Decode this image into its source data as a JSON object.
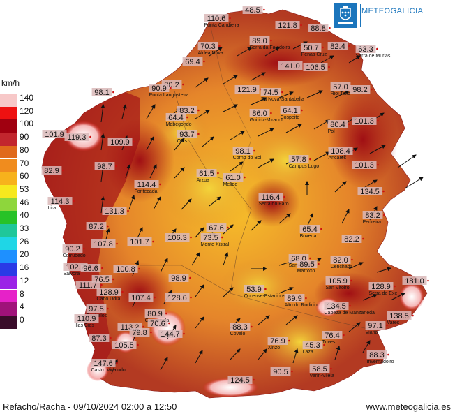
{
  "legend": {
    "unit": "km/h",
    "items": [
      {
        "label": "140",
        "color": "#f7c8c8"
      },
      {
        "label": "120",
        "color": "#ee1111"
      },
      {
        "label": "100",
        "color": "#a00010"
      },
      {
        "label": "90",
        "color": "#c2262e"
      },
      {
        "label": "80",
        "color": "#e06a1c"
      },
      {
        "label": "70",
        "color": "#f08c1e"
      },
      {
        "label": "60",
        "color": "#f7b21c"
      },
      {
        "label": "53",
        "color": "#f7e81e"
      },
      {
        "label": "46",
        "color": "#8ed63c"
      },
      {
        "label": "40",
        "color": "#27c227"
      },
      {
        "label": "33",
        "color": "#1fc79a"
      },
      {
        "label": "26",
        "color": "#1fd6e6"
      },
      {
        "label": "20",
        "color": "#1e90ff"
      },
      {
        "label": "16",
        "color": "#2a3ae6"
      },
      {
        "label": "12",
        "color": "#9b22e6"
      },
      {
        "label": "8",
        "color": "#e622c8"
      },
      {
        "label": "4",
        "color": "#a0127a"
      },
      {
        "label": "0",
        "color": "#3a0c2a"
      }
    ]
  },
  "logo": {
    "text": "METEOGALICIA",
    "icon": "galicia-crest-icon"
  },
  "footer": {
    "left": "Refacho/Racha - 09/10/2024 02:00 a 12:50",
    "right": "www.meteogalicia.es"
  },
  "stations": [
    {
      "value": "48.5",
      "place": ""
    },
    {
      "value": "110.6",
      "place": "Punta Candieira"
    },
    {
      "value": "121.8",
      "place": ""
    },
    {
      "value": "89.0",
      "place": "Serra da Faladoira"
    },
    {
      "value": "88.8",
      "place": ""
    },
    {
      "value": "70.3",
      "place": "Aldea Nova"
    },
    {
      "value": "50.7",
      "place": "Penas Cruz"
    },
    {
      "value": "82.4",
      "place": ""
    },
    {
      "value": "63.3",
      "place": "Serra de Murias"
    },
    {
      "value": "69.4",
      "place": ""
    },
    {
      "value": "141.0",
      "place": ""
    },
    {
      "value": "106.5",
      "place": ""
    },
    {
      "value": "80.2",
      "place": ""
    },
    {
      "value": "90.9",
      "place": "Punta Langosteira"
    },
    {
      "value": "121.9",
      "place": ""
    },
    {
      "value": "74.5",
      "place": "Sa Nova-Santaballa"
    },
    {
      "value": "57.0",
      "place": "Rioi Tallo"
    },
    {
      "value": "98.2",
      "place": ""
    },
    {
      "value": "98.1",
      "place": ""
    },
    {
      "value": "83.2",
      "place": ""
    },
    {
      "value": "64.4",
      "place": "Mabegondo"
    },
    {
      "value": "86.0",
      "place": "Guitiriz-Mirador"
    },
    {
      "value": "64.1",
      "place": "Cospeito"
    },
    {
      "value": "80.4",
      "place": "Pol"
    },
    {
      "value": "101.3",
      "place": ""
    },
    {
      "value": "101.9",
      "place": ""
    },
    {
      "value": "119.3",
      "place": ""
    },
    {
      "value": "109.9",
      "place": ""
    },
    {
      "value": "93.7",
      "place": "Olas"
    },
    {
      "value": "98.1",
      "place": "Corno do Boi"
    },
    {
      "value": "57.8",
      "place": "Campus Lugo"
    },
    {
      "value": "108.4",
      "place": "Ancares"
    },
    {
      "value": "82.9",
      "place": ""
    },
    {
      "value": "98.7",
      "place": ""
    },
    {
      "value": "61.5",
      "place": "Arzua"
    },
    {
      "value": "61.0",
      "place": "Melide"
    },
    {
      "value": "101.3",
      "place": ""
    },
    {
      "value": "114.4",
      "place": "Fontecada"
    },
    {
      "value": "134.5",
      "place": ""
    },
    {
      "value": "114.3",
      "place": "Lira"
    },
    {
      "value": "116.4",
      "place": "Serra do Faro"
    },
    {
      "value": "131.3",
      "place": ""
    },
    {
      "value": "83.2",
      "place": "Pedreira"
    },
    {
      "value": "87.2",
      "place": ""
    },
    {
      "value": "67.6",
      "place": "Lalin"
    },
    {
      "value": "73.5",
      "place": "Monte Xistral"
    },
    {
      "value": "65.4",
      "place": "Boveda"
    },
    {
      "value": "101.7",
      "place": ""
    },
    {
      "value": "106.3",
      "place": ""
    },
    {
      "value": "82.2",
      "place": ""
    },
    {
      "value": "90.2",
      "place": "Corrubedo"
    },
    {
      "value": "107.8",
      "place": ""
    },
    {
      "value": "68.0",
      "place": "Sanxenxo"
    },
    {
      "value": "89.5",
      "place": "Marroxo"
    },
    {
      "value": "82.0",
      "place": "Cenchada"
    },
    {
      "value": "102.7",
      "place": "Salvora"
    },
    {
      "value": "96.6",
      "place": ""
    },
    {
      "value": "100.8",
      "place": ""
    },
    {
      "value": "111.7",
      "place": ""
    },
    {
      "value": "76.5",
      "place": ""
    },
    {
      "value": "98.9",
      "place": ""
    },
    {
      "value": "105.9",
      "place": "San Vitoiro"
    },
    {
      "value": "128.9",
      "place": "Serra de Exe"
    },
    {
      "value": "181.0",
      "place": ""
    },
    {
      "value": "128.9",
      "place": "Cabo Udra"
    },
    {
      "value": "107.4",
      "place": ""
    },
    {
      "value": "128.6",
      "place": ""
    },
    {
      "value": "53.9",
      "place": "Ourense-Estacions"
    },
    {
      "value": "89.9",
      "place": "Alto do Rodicio"
    },
    {
      "value": "97.5",
      "place": "Castrelos"
    },
    {
      "value": "80.9",
      "place": "Gargamala"
    },
    {
      "value": "134.5",
      "place": "Cabeza de Manzaneda"
    },
    {
      "value": "138.5",
      "place": "Vares"
    },
    {
      "value": "110.9",
      "place": "Illas Cies"
    },
    {
      "value": "113.2",
      "place": ""
    },
    {
      "value": "70.6",
      "place": ""
    },
    {
      "value": "88.3",
      "place": "Covelo"
    },
    {
      "value": "97.1",
      "place": "Viana"
    },
    {
      "value": "87.3",
      "place": ""
    },
    {
      "value": "79.8",
      "place": ""
    },
    {
      "value": "144.7",
      "place": ""
    },
    {
      "value": "76.4",
      "place": "Trives"
    },
    {
      "value": "76.9",
      "place": "Xinzo"
    },
    {
      "value": "45.3",
      "place": "Laza"
    },
    {
      "value": "105.5",
      "place": ""
    },
    {
      "value": "88.3",
      "place": "Invernadoiro"
    },
    {
      "value": "147.6",
      "place": "Castro Vicaludo"
    },
    {
      "value": "58.5",
      "place": "Verin-Vilela"
    },
    {
      "value": "124.5",
      "place": ""
    },
    {
      "value": "90.5",
      "place": ""
    }
  ]
}
